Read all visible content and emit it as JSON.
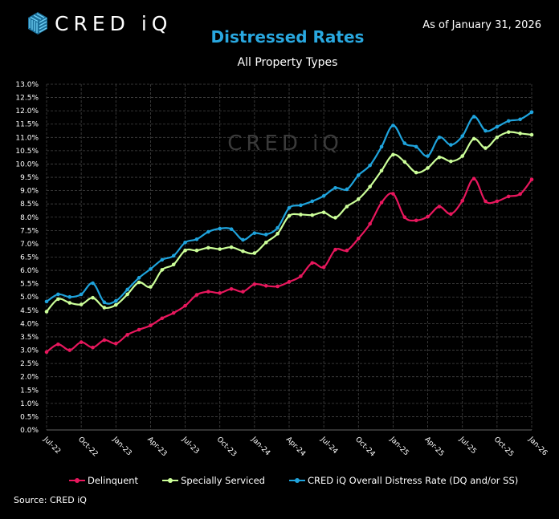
{
  "header": {
    "logo_text": "CRED iQ",
    "as_of": "As of January 31, 2026",
    "watermark": "CRED iQ"
  },
  "chart_data": {
    "type": "line",
    "title": "Distressed Rates",
    "subtitle": "All Property Types",
    "x": [
      "Jul-22",
      "Aug-22",
      "Sep-22",
      "Oct-22",
      "Nov-22",
      "Dec-22",
      "Jan-23",
      "Feb-23",
      "Mar-23",
      "Apr-23",
      "May-23",
      "Jun-23",
      "Jul-23",
      "Aug-23",
      "Sep-23",
      "Oct-23",
      "Nov-23",
      "Dec-23",
      "Jan-24",
      "Feb-24",
      "Mar-24",
      "Apr-24",
      "May-24",
      "Jun-24",
      "Jul-24",
      "Aug-24",
      "Sep-24",
      "Oct-24",
      "Nov-24",
      "Dec-24",
      "Jan-25",
      "Feb-25",
      "Mar-25",
      "Apr-25",
      "May-25",
      "Jun-25",
      "Jul-25",
      "Aug-25",
      "Sep-25",
      "Oct-25",
      "Nov-25",
      "Dec-25",
      "Jan-26"
    ],
    "x_tick_labels": [
      "Jul-22",
      "Oct-22",
      "Jan-23",
      "Apr-23",
      "Jul-23",
      "Oct-23",
      "Jan-24",
      "Apr-24",
      "Jul-24",
      "Oct-24",
      "Jan-25",
      "Apr-25",
      "Jul-25",
      "Oct-25",
      "Jan-26"
    ],
    "y_tick_labels": [
      "0.0%",
      "0.5%",
      "1.0%",
      "1.5%",
      "2.0%",
      "2.5%",
      "3.0%",
      "3.5%",
      "4.0%",
      "4.5%",
      "5.0%",
      "5.5%",
      "6.0%",
      "6.5%",
      "7.0%",
      "7.5%",
      "8.0%",
      "8.5%",
      "9.0%",
      "9.5%",
      "10.0%",
      "10.5%",
      "11.0%",
      "11.5%",
      "12.0%",
      "12.5%",
      "13.0%"
    ],
    "ylim": [
      0,
      13
    ],
    "y_unit": "%",
    "grid": true,
    "legend_position": "bottom",
    "series": [
      {
        "name": "Delinquent",
        "color": "#e8175d",
        "values": [
          2.93,
          3.22,
          3.0,
          3.3,
          3.1,
          3.38,
          3.25,
          3.58,
          3.77,
          3.93,
          4.2,
          4.4,
          4.67,
          5.08,
          5.2,
          5.15,
          5.3,
          5.2,
          5.48,
          5.42,
          5.4,
          5.57,
          5.78,
          6.28,
          6.12,
          6.78,
          6.75,
          7.2,
          7.75,
          8.55,
          8.88,
          8.0,
          7.88,
          8.02,
          8.4,
          8.12,
          8.62,
          9.45,
          8.6,
          8.6,
          8.78,
          8.87,
          9.42
        ]
      },
      {
        "name": "Specially Serviced",
        "color": "#ccff99",
        "values": [
          4.45,
          4.92,
          4.78,
          4.72,
          4.97,
          4.6,
          4.7,
          5.1,
          5.55,
          5.38,
          6.02,
          6.22,
          6.75,
          6.75,
          6.85,
          6.8,
          6.87,
          6.72,
          6.65,
          7.05,
          7.38,
          8.05,
          8.1,
          8.08,
          8.18,
          7.98,
          8.4,
          8.68,
          9.15,
          9.75,
          10.35,
          10.08,
          9.68,
          9.85,
          10.25,
          10.1,
          10.3,
          10.95,
          10.6,
          11.0,
          11.2,
          11.15,
          11.1
        ]
      },
      {
        "name": "CRED iQ Overall Distress Rate (DQ and/or SS)",
        "color": "#1fa3dc",
        "values": [
          4.83,
          5.1,
          5.0,
          5.1,
          5.52,
          4.8,
          4.85,
          5.28,
          5.72,
          6.05,
          6.4,
          6.55,
          7.05,
          7.17,
          7.45,
          7.57,
          7.55,
          7.15,
          7.4,
          7.35,
          7.6,
          8.35,
          8.45,
          8.6,
          8.8,
          9.1,
          9.05,
          9.58,
          9.95,
          10.65,
          11.45,
          10.78,
          10.65,
          10.3,
          11.0,
          10.72,
          11.05,
          11.78,
          11.25,
          11.4,
          11.62,
          11.68,
          11.95
        ]
      }
    ]
  },
  "footer": {
    "source": "Source:  CRED iQ"
  }
}
